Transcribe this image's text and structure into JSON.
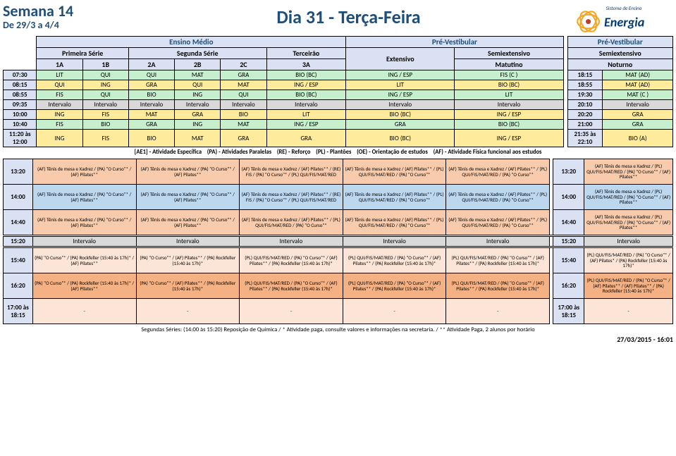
{
  "header": {
    "week_label": "Semana 14",
    "date_range": "De 29/3 a 4/4",
    "day_title": "Dia 31 - Terça-Feira",
    "logo_top": "Sistema de Ensino",
    "logo_name": "Energia"
  },
  "group_headers": {
    "ensino_medio": "Ensino Médio",
    "pre_vest": "Pré-Vestibular",
    "pre_vest2": "Pré-Vestibular",
    "primeira": "Primeira Série",
    "segunda": "Segunda Série",
    "terceirao": "Terceirão",
    "extensivo": "Extensivo",
    "semi_mat": "Semiextensivo",
    "semi_not": "Semiextensivo",
    "matutino": "Matutino",
    "noturno": "Noturno"
  },
  "columns": [
    "1A",
    "1B",
    "2A",
    "2B",
    "2C",
    "3A"
  ],
  "morning": [
    {
      "t": "07:30",
      "c": [
        "LIT",
        "QUI",
        "QUI",
        "MAT",
        "GRA",
        "BIO (BC)",
        "ING / ESP",
        "FIS (C )"
      ],
      "t2": "18:15",
      "c2": "MAT (AD)",
      "bg": "bg-green"
    },
    {
      "t": "08:15",
      "c": [
        "QUI",
        "ING",
        "GRA",
        "QUI",
        "MAT",
        "ING / ESP",
        "LIT",
        "BIO (BC)"
      ],
      "t2": "18:55",
      "c2": "MAT (AD)",
      "bg": "bg-yellow"
    },
    {
      "t": "08:55",
      "c": [
        "FIS",
        "QUI",
        "BIO",
        "ING",
        "QUI",
        "BIO (BC)",
        "ING / ESP",
        "LIT"
      ],
      "t2": "19:30",
      "c2": "MAT (C )",
      "bg": "bg-green"
    },
    {
      "t": "09:35",
      "c": [
        "Intervalo",
        "Intervalo",
        "Intervalo",
        "Intervalo",
        "Intervalo",
        "Intervalo",
        "Intervalo",
        "Intervalo"
      ],
      "t2": "20:10",
      "c2": "Intervalo",
      "bg": "bg-gray"
    },
    {
      "t": "10:00",
      "c": [
        "ING",
        "FIS",
        "MAT",
        "GRA",
        "BIO",
        "LIT",
        "BIO (BC)",
        "ING / ESP"
      ],
      "t2": "20:20",
      "c2": "GRA",
      "bg": "bg-yellow"
    },
    {
      "t": "10:40",
      "c": [
        "FIS",
        "BIO",
        "GRA",
        "ING",
        "MAT",
        "ING / ESP",
        "GRA",
        "BIO (BC)"
      ],
      "t2": "21:00",
      "c2": "GRA",
      "bg": "bg-green"
    },
    {
      "t": "11:20 às 12:00",
      "c": [
        "ING",
        "FIS",
        "BIO",
        "MAT",
        "GRA",
        "GRA",
        "BIO (BC)",
        "ING / ESP"
      ],
      "t2": "21:35 às 22:10",
      "c2": "BIO (A)",
      "bg": "bg-yellow"
    }
  ],
  "legend": {
    "ae1": "[AE1] - Atividade Específica",
    "pa": "(PA) - Atividades Paralelas",
    "re": "(RE) - Reforço",
    "pl": "(PL) - Plantões",
    "oe": "(OE) - Orientação de estudos",
    "af": "(AF) - Atividade Física funcional aos estudos"
  },
  "afternoon": [
    {
      "t": "13:20",
      "bg": "bg-orange",
      "cells": [
        "(AF) Tênis de mesa e Xadrez / (PA) \"O Curso\"* / (AF) Pilates**",
        "(AF) Tênis de mesa e Xadrez / (PA) \"O Curso\"* / (AF) Pilates**",
        "(AF) Tênis de mesa e Xadrez / (AF) Pilates** / (RE) FIS / (PA) \"O Curso\"* / (PL) QUI/FIS/MAT/RED",
        "(AF) Tênis de mesa e Xadrez / (AF) Pilates** / (PL) QUI/FIS/MAT/RED / (PA) \"O Curso\"*",
        "(AF) Tênis de mesa e Xadrez / (AF) Pilates** / (PL) QUI/FIS/MAT/RED / (PA) \"O Curso\"*"
      ],
      "t2": "13:20",
      "last": "(AF) Tênis de mesa e Xadrez / (PL) QUI/FIS/MAT/RED / (PA) \"O Curso\"* / (AF) Pilates**"
    },
    {
      "t": "14:00",
      "bg": "bg-blue",
      "cells": [
        "(AF) Tênis de mesa e Xadrez / (PA) \"O Curso\"* / (AF) Pilates**",
        "(AF) Tênis de mesa e Xadrez / (PA) \"O Curso\"* / (AF) Pilates**",
        "(AF) Tênis de mesa e Xadrez / (AF) Pilates** / (RE) FIS / (PA) \"O Curso\"* / (PL) QUI/FIS/MAT/RED",
        "(AF) Tênis de mesa e Xadrez / (AF) Pilates** / (PL) QUI/FIS/MAT/RED / (PA) \"O Curso\"*",
        "(AF) Tênis de mesa e Xadrez / (AF) Pilates** / (PL) QUI/FIS/MAT/RED / (PA) \"O Curso\"*"
      ],
      "t2": "14:00",
      "last": "(AF) Tênis de mesa e Xadrez / (PL) QUI/FIS/MAT/RED / (PA) \"O Curso\"* / (AF) Pilates**"
    },
    {
      "t": "14:40",
      "bg": "bg-orange",
      "cells": [
        "(AF) Tênis de mesa e Xadrez / (PA) \"O Curso\"* / (AF) Pilates**",
        "(AF) Tênis de mesa e Xadrez / (PA) \"O Curso\"* / (AF) Pilates**",
        "(AF) Tênis de mesa e Xadrez / (AF) Pilates** / (PL) QUI/FIS/MAT/RED / (PA) \"O Curso\"*",
        "(AF) Tênis de mesa e Xadrez / (AF) Pilates** / (PL) QUI/FIS/MAT/RED / (PA) \"O Curso\"*",
        "(AF) Tênis de mesa e Xadrez / (AF) Pilates** / (PL) QUI/FIS/MAT/RED / (PA) \"O Curso\"*"
      ],
      "t2": "14:40",
      "last": "(AF) Tênis de mesa e Xadrez / (PL) QUI/FIS/MAT/RED / (PA) \"O Curso\"* / (AF) Pilates**"
    }
  ],
  "interval_row": {
    "t": "15:20",
    "label": "Intervalo",
    "t2": "15:20"
  },
  "late": [
    {
      "t": "15:40",
      "bg": "bg-pink",
      "cells": [
        "(PA) \"O Curso\"* / (PA) Rockfeller (15:40 às 17h)* / (AF) Pilates**",
        "(PA) \"O Curso\"* / (AF) Pilates** / (PA) Rockfeller (15:40 às 17h)*",
        "(PL) QUI/FIS/MAT/RED / (PA) \"O Curso\"* / (AF) Pilates** / (PA) Rockfeller (15:40 às 17h)*",
        "(PL) QUI/FIS/MAT/RED / (PA) \"O Curso\"* / (AF) Pilates** / (PA) Rockfeller (15:40 às 17h)*",
        "(PL) QUI/FIS/MAT/RED / (PA) \"O Curso\"* / (AF) Pilates** / (PA) Rockfeller (15:40 às 17h)*"
      ],
      "t2": "15:40",
      "last": "(PL) QUI/FIS/MAT/RED / (PA) \"O Curso\"* / (AF) Pilates* / (PA) Rockfeller (15:40 às 17h)*"
    },
    {
      "t": "16:20",
      "bg": "bg-red",
      "cells": [
        "(PA) \"O Curso\"* / (PA) Rockfeller (15:40 às 17h)* / (AF) Pilates**",
        "(PA) \"O Curso\"* / (AF) Pilates** / (PA) Rockfeller (15:40 às 17h)*",
        "(PL) QUI/FIS/MAT/RED / (PA) \"O Curso\"* / (AF) Pilates** / (PA) Rockfeller (15:40 às 17h)*",
        "(PL) QUI/FIS/MAT/RED / (PA) \"O Curso\"* / (AF) Pilates** / (PA) Rockfeller (15:40 às 17h)*",
        "(PL) QUI/FIS/MAT/RED / (PA) \"O Curso\"* / (AF) Pilates** / (PA) Rockfeller (15:40 às 17h)*"
      ],
      "t2": "16:20",
      "last": "(PL) QUI/FIS/MAT/RED / (PA) \"O Curso\"* / (AF) Pilates** / (AF) Pilates** / (PA) Rockfeller (15:40 às 17h)*"
    },
    {
      "t": "17:00 às 18:15",
      "bg": "bg-pink",
      "cells": [
        "-",
        "-",
        "-",
        "-",
        "-"
      ],
      "t2": "17:00 às 18:15",
      "last": "-"
    }
  ],
  "footer_note": "Segundas Séries: (14:00 às 15:20) Reposição de Química / * Atividade paga, consulte valores e informações na secretaria. / ** Atividade Paga, 2 alunos por horário",
  "footer_date": "27/03/2015 - 16:01"
}
